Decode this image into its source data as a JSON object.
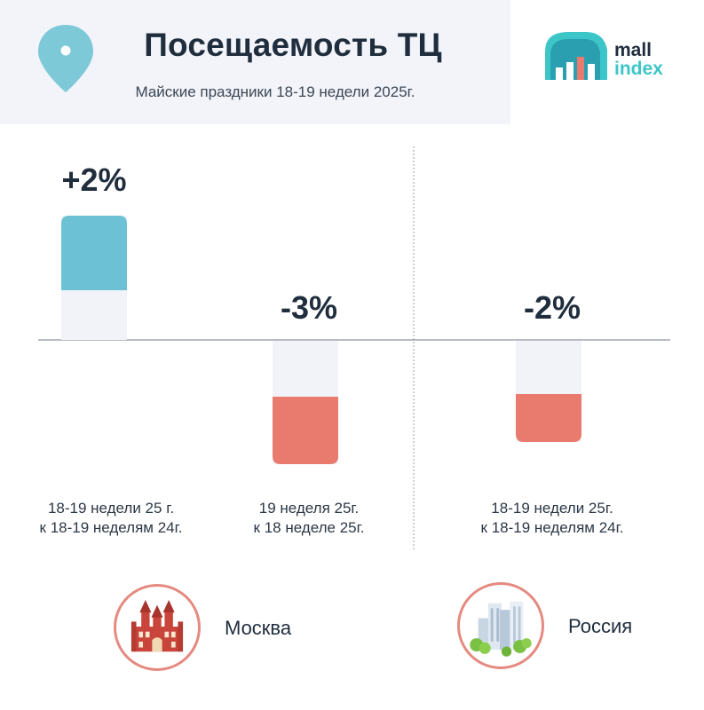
{
  "header": {
    "title": "Посещаемость ТЦ",
    "subtitle": "Майские праздники 18-19 недели 2025г."
  },
  "logo": {
    "line1": "mall",
    "line2": "index"
  },
  "colors": {
    "positive": "#6cc2d4",
    "negative": "#e87a6e",
    "track": "#f2f3f8",
    "accent": "#3cc6c8",
    "circle_border": "#e58a80"
  },
  "icons": [
    "pin-icon",
    "mall-index-logo",
    "moscow-landmark-icon",
    "russia-city-icon"
  ],
  "chart_data": {
    "type": "bar",
    "categories": [
      "18-19 недели 25 г. к 18-19 неделям 24г.",
      "19 неделя 25г. к 18 неделе 25г.",
      "18-19 недели 25г. к 18-19 неделям 24г."
    ],
    "values": [
      2,
      -3,
      -2
    ],
    "value_labels": [
      "+2%",
      "-3%",
      "-2%"
    ],
    "unit": "%",
    "groups": [
      {
        "region": "Москва",
        "bars": [
          0,
          1
        ]
      },
      {
        "region": "Россия",
        "bars": [
          2
        ]
      }
    ],
    "ylim": [
      -3,
      3
    ]
  },
  "captions": [
    {
      "line1": "18-19 недели 25 г.",
      "line2": "к 18-19 неделям 24г."
    },
    {
      "line1": "19 неделя 25г.",
      "line2": "к 18 неделе 25г."
    },
    {
      "line1": "18-19 недели 25г.",
      "line2": "к 18-19 неделям 24г."
    }
  ],
  "regions": {
    "moscow": "Москва",
    "russia": "Россия"
  }
}
